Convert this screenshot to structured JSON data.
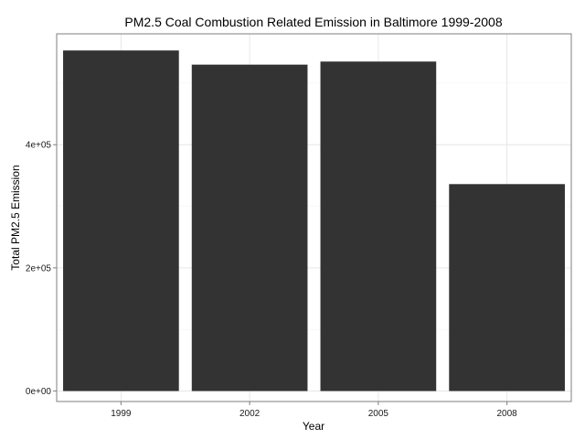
{
  "chart_data": {
    "type": "bar",
    "title": "PM2.5 Coal Combustion Related Emission in Baltimore 1999-2008",
    "xlabel": "Year",
    "ylabel": "Total PM2.5 Emission",
    "categories": [
      "1999",
      "2002",
      "2005",
      "2008"
    ],
    "values": [
      553000,
      530000,
      535000,
      336000
    ],
    "ylim": [
      -17000,
      580000
    ],
    "yticks": [
      0,
      200000,
      400000
    ],
    "ytick_labels": [
      "0e+00",
      "2e+05",
      "4e+05"
    ],
    "grid": true,
    "legend": "none",
    "colors": {
      "bar": "#333333",
      "grid_major": "#e6e6e6",
      "grid_minor": "#f3f3f3",
      "panel_border": "#7f7f7f",
      "background": "#ffffff"
    }
  }
}
